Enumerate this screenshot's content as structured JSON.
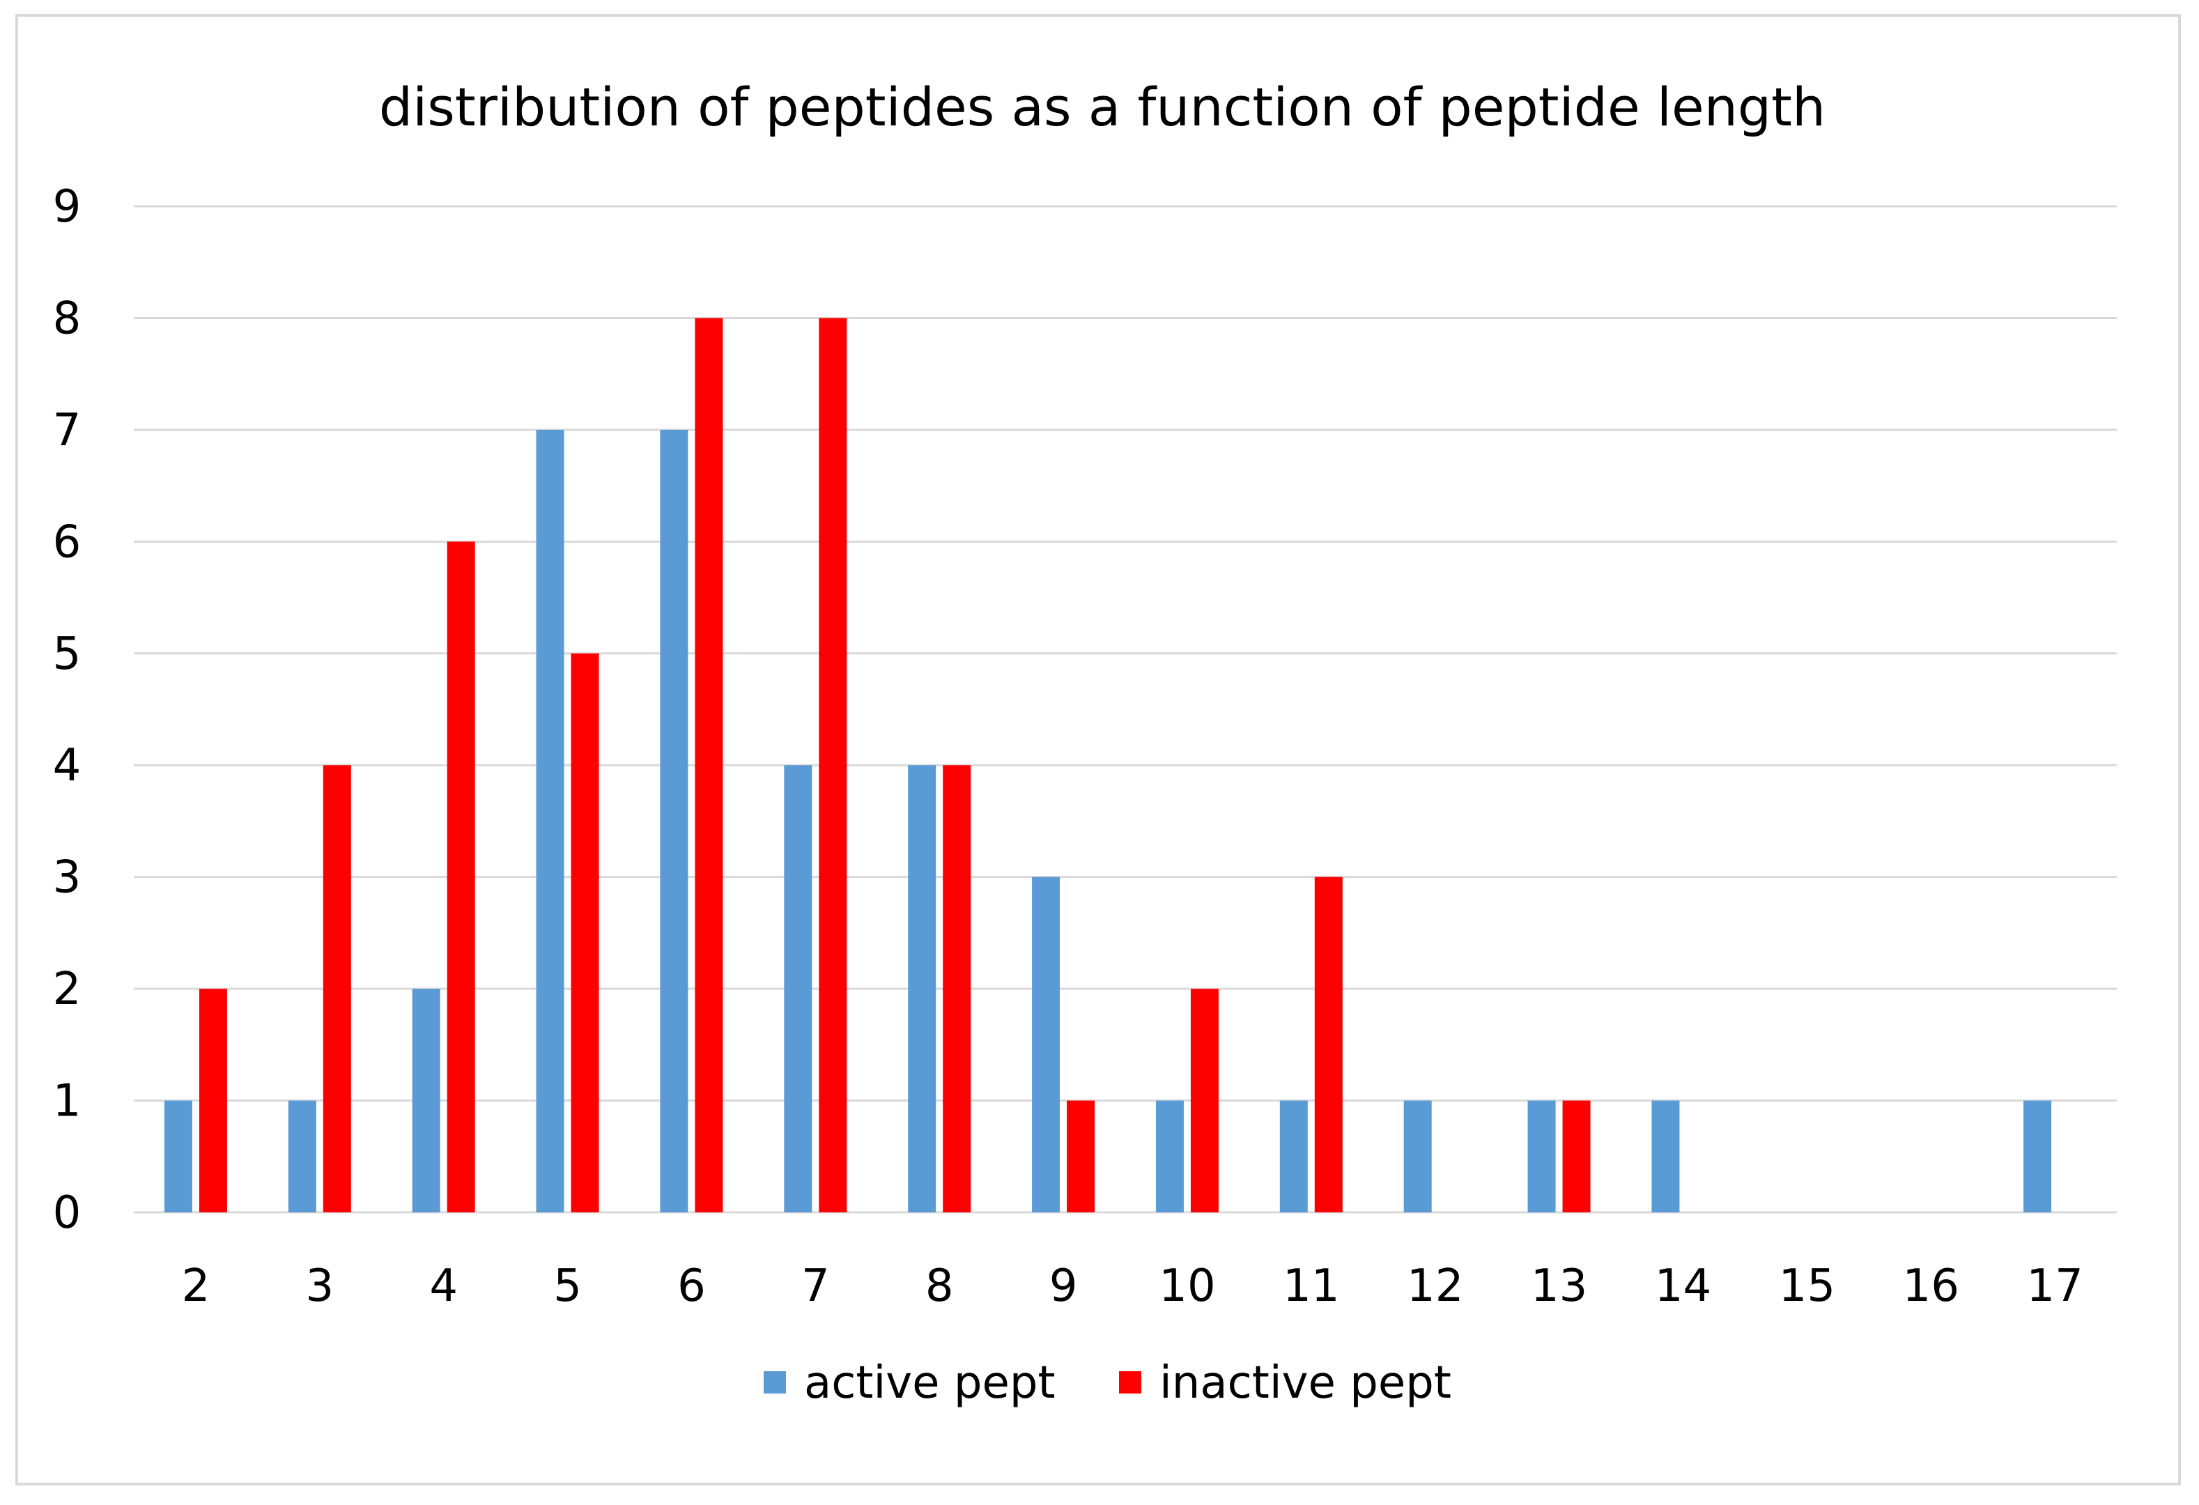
{
  "chart_data": {
    "type": "bar",
    "title": "distribution of peptides as a function of peptide length",
    "xlabel": "",
    "ylabel": "",
    "categories": [
      "2",
      "3",
      "4",
      "5",
      "6",
      "7",
      "8",
      "9",
      "10",
      "11",
      "12",
      "13",
      "14",
      "15",
      "16",
      "17"
    ],
    "series": [
      {
        "name": "active pept",
        "color": "#5b9bd5",
        "values": [
          1,
          1,
          2,
          7,
          7,
          4,
          4,
          3,
          1,
          1,
          1,
          1,
          1,
          0,
          0,
          1
        ]
      },
      {
        "name": "inactive pept",
        "color": "#ff0000",
        "values": [
          2,
          4,
          6,
          5,
          8,
          8,
          4,
          1,
          2,
          3,
          0,
          1,
          0,
          0,
          0,
          0
        ]
      }
    ],
    "ylim": [
      0,
      9
    ],
    "yticks": [
      0,
      1,
      2,
      3,
      4,
      5,
      6,
      7,
      8,
      9
    ],
    "grid": true,
    "legend_position": "bottom"
  }
}
